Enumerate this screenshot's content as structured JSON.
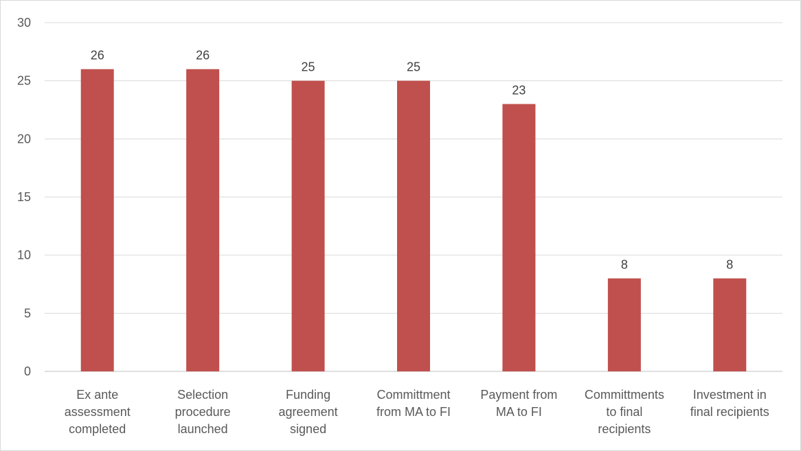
{
  "chart_data": {
    "type": "bar",
    "categories": [
      [
        "Ex ante",
        "assessment",
        "completed"
      ],
      [
        "Selection",
        "procedure",
        "launched"
      ],
      [
        "Funding",
        "agreement",
        "signed"
      ],
      [
        "Committment",
        "from MA to FI"
      ],
      [
        "Payment from",
        "MA to FI"
      ],
      [
        "Committments",
        "to final",
        "recipients"
      ],
      [
        "Investment in",
        "final recipients"
      ]
    ],
    "values": [
      26,
      26,
      25,
      25,
      23,
      8,
      8
    ],
    "data_labels": [
      "26",
      "26",
      "25",
      "25",
      "23",
      "8",
      "8"
    ],
    "y_ticks": [
      "0",
      "5",
      "10",
      "15",
      "20",
      "25",
      "30"
    ],
    "ylim": [
      0,
      30
    ],
    "grid": true,
    "legend": "none",
    "title": "",
    "xlabel": "",
    "ylabel": "",
    "colors": {
      "bar": "#c0504d",
      "grid": "#d9d9d9",
      "axis": "#bfbfbf"
    }
  }
}
